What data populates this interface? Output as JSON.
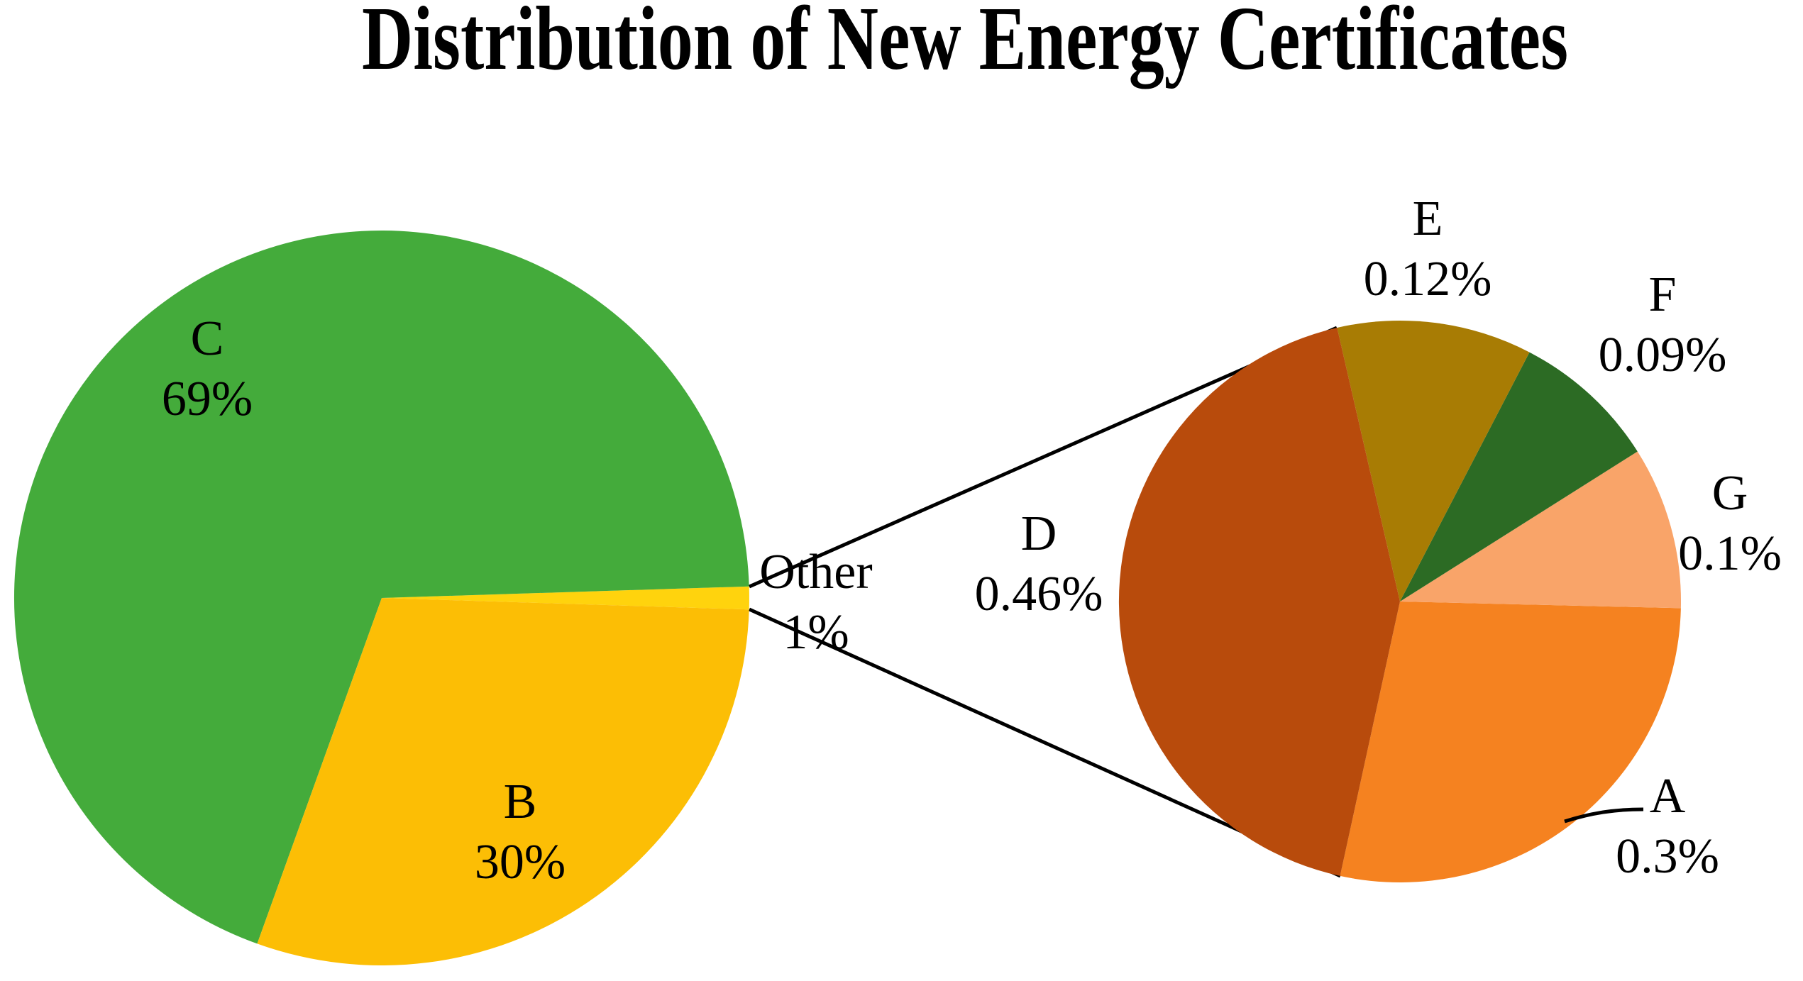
{
  "title": "Distribution of New Energy Certificates",
  "background": "#FFFFFF",
  "text_color": "#000000",
  "connector_color": "#000000",
  "chart_data": [
    {
      "type": "pie",
      "name": "certificates-overview",
      "title": "Distribution of New Energy Certificates",
      "legend_position": "none",
      "labels_on": "slices",
      "direction": "counterclockwise",
      "start_angle_deg": -1.8,
      "categories": [
        "Other",
        "C",
        "B"
      ],
      "values": [
        1,
        69,
        30
      ],
      "slices": [
        {
          "label": "Other",
          "value": 1,
          "display": "1%",
          "color": "#FFD30D"
        },
        {
          "label": "C",
          "value": 69,
          "display": "69%",
          "color": "#44AB3B"
        },
        {
          "label": "B",
          "value": 30,
          "display": "30%",
          "color": "#FCBE05"
        }
      ]
    },
    {
      "type": "pie",
      "name": "other-breakdown",
      "title": "",
      "note": "detail pie expanding the 1% Other slice",
      "legend_position": "none",
      "labels_on": "outside",
      "direction": "counterclockwise",
      "start_angle_deg": -102.3,
      "categories": [
        "A",
        "G",
        "F",
        "E",
        "D"
      ],
      "values": [
        0.3,
        0.1,
        0.09,
        0.12,
        0.46
      ],
      "slices": [
        {
          "label": "A",
          "value": 0.3,
          "display": "0.3%",
          "color": "#F58220"
        },
        {
          "label": "G",
          "value": 0.1,
          "display": "0.1%",
          "color": "#F9A469"
        },
        {
          "label": "F",
          "value": 0.09,
          "display": "0.09%",
          "color": "#2C6B24"
        },
        {
          "label": "E",
          "value": 0.12,
          "display": "0.12%",
          "color": "#A87C04"
        },
        {
          "label": "D",
          "value": 0.46,
          "display": "0.46%",
          "color": "#B84B0C"
        }
      ]
    }
  ]
}
